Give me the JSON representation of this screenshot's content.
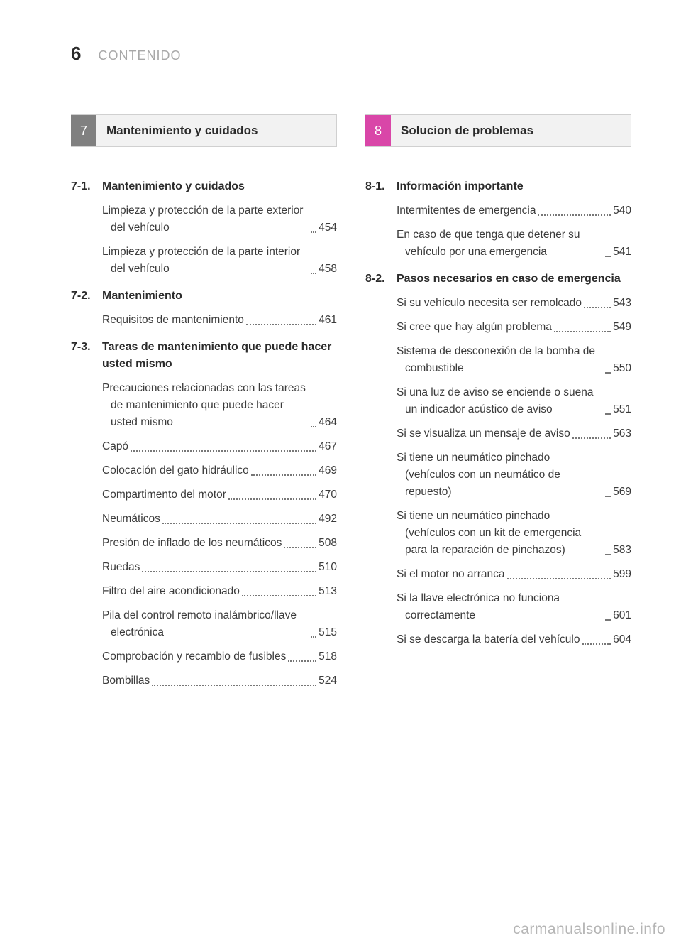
{
  "header": {
    "page_number": "6",
    "label": "CONTENIDO"
  },
  "left": {
    "tab_number": "7",
    "tab_title": "Mantenimiento y cuidados",
    "subsections": [
      {
        "num": "7-1.",
        "title": "Mantenimiento y cuidados",
        "entries": [
          {
            "text": "Limpieza y protección de la parte exterior del vehículo",
            "page": "454"
          },
          {
            "text": "Limpieza y protección de la parte interior del vehículo",
            "page": "458"
          }
        ]
      },
      {
        "num": "7-2.",
        "title": "Mantenimiento",
        "entries": [
          {
            "text": "Requisitos de mantenimiento",
            "page": "461"
          }
        ]
      },
      {
        "num": "7-3.",
        "title": "Tareas de mantenimiento que puede hacer usted mismo",
        "entries": [
          {
            "text": "Precauciones relacionadas con las tareas de mantenimiento que puede hacer usted mismo",
            "page": "464"
          },
          {
            "text": "Capó",
            "page": "467"
          },
          {
            "text": "Colocación del gato hidráulico",
            "page": "469"
          },
          {
            "text": "Compartimento del motor",
            "page": "470"
          },
          {
            "text": "Neumáticos",
            "page": "492"
          },
          {
            "text": "Presión de inflado de los neumáticos",
            "page": "508"
          },
          {
            "text": "Ruedas",
            "page": "510"
          },
          {
            "text": "Filtro del aire acondicionado",
            "page": "513"
          },
          {
            "text": "Pila del control remoto inalámbrico/llave electrónica",
            "page": "515"
          },
          {
            "text": "Comprobación y recambio de fusibles",
            "page": "518"
          },
          {
            "text": "Bombillas",
            "page": "524"
          }
        ]
      }
    ]
  },
  "right": {
    "tab_number": "8",
    "tab_title": "Solucion de problemas",
    "subsections": [
      {
        "num": "8-1.",
        "title": "Información importante",
        "entries": [
          {
            "text": "Intermitentes de emergencia",
            "page": "540"
          },
          {
            "text": "En caso de que tenga que detener su vehículo por una emergencia",
            "page": "541"
          }
        ]
      },
      {
        "num": "8-2.",
        "title": "Pasos necesarios en caso de emergencia",
        "entries": [
          {
            "text": "Si su vehículo necesita ser remolcado",
            "page": "543"
          },
          {
            "text": "Si cree que hay algún problema",
            "page": "549"
          },
          {
            "text": "Sistema de desconexión de la bomba de combustible",
            "page": "550"
          },
          {
            "text": "Si una luz de aviso se enciende o suena un indicador acústico de aviso",
            "page": "551"
          },
          {
            "text": "Si se visualiza un mensaje de aviso",
            "page": "563"
          },
          {
            "text": "Si tiene un neumático pinchado (vehículos con un neumático de repuesto)",
            "page": "569"
          },
          {
            "text": "Si tiene un neumático pinchado (vehículos con un kit de emergencia para la reparación de pinchazos)",
            "page": "583"
          },
          {
            "text": "Si el motor no arranca",
            "page": "599"
          },
          {
            "text": "Si la llave electrónica no funciona correctamente",
            "page": "601"
          },
          {
            "text": "Si se descarga la batería del vehículo",
            "page": "604"
          }
        ]
      }
    ]
  },
  "watermark": "carmanualsonline.info"
}
